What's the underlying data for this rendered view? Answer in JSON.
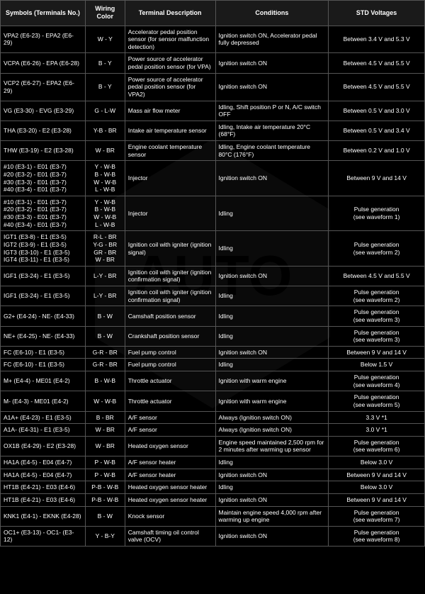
{
  "columns": [
    "Symbols (Terminals No.)",
    "Wiring Color",
    "Terminal Description",
    "Conditions",
    "STD Voltages"
  ],
  "rows": [
    [
      "VPA2 (E6-23) - EPA2 (E6-29)",
      "W - Y",
      "Accelerator pedal position sensor (for sensor malfunction detection)",
      "Ignition switch ON, Accelerator pedal fully depressed",
      "Between 3.4 V and 5.3 V"
    ],
    [
      "VCPA (E6-26) - EPA (E6-28)",
      "B - Y",
      "Power source of accelerator pedal position sensor (for VPA)",
      "Ignition switch ON",
      "Between 4.5 V and 5.5 V"
    ],
    [
      "VCP2 (E6-27) - EPA2 (E6-29)",
      "B - Y",
      "Power source of accelerator pedal position sensor (for VPA2)",
      "Ignition switch ON",
      "Between 4.5 V and 5.5 V"
    ],
    [
      "VG (E3-30) - EVG (E3-29)",
      "G - L-W",
      "Mass air flow meter",
      "Idling, Shift position P or N, A/C switch OFF",
      "Between 0.5 V and 3.0 V"
    ],
    [
      "THA (E3-20) - E2 (E3-28)",
      "Y-B - BR",
      "Intake air temperature sensor",
      "Idling, Intake air temperature 20°C (68°F)",
      "Between 0.5 V and 3.4 V"
    ],
    [
      "THW (E3-19) - E2 (E3-28)",
      "W - BR",
      "Engine coolant temperature sensor",
      "Idling, Engine coolant temperature 80°C (176°F)",
      "Between 0.2 V and 1.0 V"
    ],
    [
      "#10 (E3-1) - E01 (E3-7)\n#20 (E3-2) - E01 (E3-7)\n#30 (E3-3) - E01 (E3-7)\n#40 (E3-4) - E01 (E3-7)",
      "Y - W-B\nB - W-B\nW - W-B\nL - W-B",
      "Injector",
      "Ignition switch ON",
      "Between 9 V and 14 V"
    ],
    [
      "#10 (E3-1) - E01 (E3-7)\n#20 (E3-2) - E01 (E3-7)\n#30 (E3-3) - E01 (E3-7)\n#40 (E3-4) - E01 (E3-7)",
      "Y - W-B\nB - W-B\nW - W-B\nL - W-B",
      "Injector",
      "Idling",
      "Pulse generation\n(see waveform 1)"
    ],
    [
      "IGT1 (E3-8) - E1 (E3-5)\nIGT2 (E3-9) - E1 (E3-5)\nIGT3 (E3-10) - E1 (E3-5)\nIGT4 (E3-11) - E1 (E3-5)",
      "R-L - BR\nY-G - BR\nGR - BR\nW - BR",
      "Ignition coil with igniter (ignition signal)",
      "Idling",
      "Pulse generation\n(see waveform 2)"
    ],
    [
      "IGF1 (E3-24) - E1 (E3-5)",
      "L-Y - BR",
      "Ignition coil with igniter (ignition confirmation signal)",
      "Ignition switch ON",
      "Between 4.5 V and 5.5 V"
    ],
    [
      "IGF1 (E3-24) - E1 (E3-5)",
      "L-Y - BR",
      "Ignition coil with igniter (ignition confirmation signal)",
      "Idling",
      "Pulse generation\n(see waveform 2)"
    ],
    [
      "G2+ (E4-24) - NE- (E4-33)",
      "B - W",
      "Camshaft position sensor",
      "Idling",
      "Pulse generation\n(see waveform 3)"
    ],
    [
      "NE+ (E4-25) - NE- (E4-33)",
      "B - W",
      "Crankshaft position sensor",
      "Idling",
      "Pulse generation\n(see waveform 3)"
    ],
    [
      "FC (E6-10) - E1 (E3-5)",
      "G-R - BR",
      "Fuel pump control",
      "Ignition switch ON",
      "Between 9 V and 14 V"
    ],
    [
      "FC (E6-10) - E1 (E3-5)",
      "G-R - BR",
      "Fuel pump control",
      "Idling",
      "Below 1.5 V"
    ],
    [
      "M+ (E4-4) - ME01 (E4-2)",
      "B - W-B",
      "Throttle actuator",
      "Ignition with warm engine",
      "Pulse generation\n(see waveform 4)"
    ],
    [
      "M- (E4-3) - ME01 (E4-2)",
      "W - W-B",
      "Throttle actuator",
      "Ignition with warm engine",
      "Pulse generation\n(see waveform 5)"
    ],
    [
      "A1A+ (E4-23) - E1 (E3-5)",
      "B - BR",
      "A/F sensor",
      "Always (Ignition switch ON)",
      "3.3 V *1"
    ],
    [
      "A1A- (E4-31) - E1 (E3-5)",
      "W - BR",
      "A/F sensor",
      "Always (Ignition switch ON)",
      "3.0 V *1"
    ],
    [
      "OX1B (E4-29) - E2 (E3-28)",
      "W - BR",
      "Heated oxygen sensor",
      "Engine speed maintained 2,500 rpm for 2 minutes after warming up sensor",
      "Pulse generation\n(see waveform 6)"
    ],
    [
      "HA1A (E4-5) - E04 (E4-7)",
      "P - W-B",
      "A/F sensor heater",
      "Idling",
      "Below 3.0 V"
    ],
    [
      "HA1A (E4-5) - E04 (E4-7)",
      "P - W-B",
      "A/F sensor heater",
      "Ignition switch ON",
      "Between 9 V and 14 V"
    ],
    [
      "HT1B (E4-21) - E03 (E4-6)",
      "P-B - W-B",
      "Heated oxygen sensor heater",
      "Idling",
      "Below 3.0 V"
    ],
    [
      "HT1B (E4-21) - E03 (E4-6)",
      "P-B - W-B",
      "Heated oxygen sensor heater",
      "Ignition switch ON",
      "Between 9 V and 14 V"
    ],
    [
      "KNK1 (E4-1) - EKNK (E4-28)",
      "B - W",
      "Knock sensor",
      "Maintain engine speed 4,000 rpm after warming up engine",
      "Pulse generation\n(see waveform 7)"
    ],
    [
      "OC1+ (E3-13) - OC1- (E3-12)",
      "Y - B-Y",
      "Camshaft timing oil control valve (OCV)",
      "Ignition switch ON",
      "Pulse generation\n(see waveform 8)"
    ]
  ]
}
